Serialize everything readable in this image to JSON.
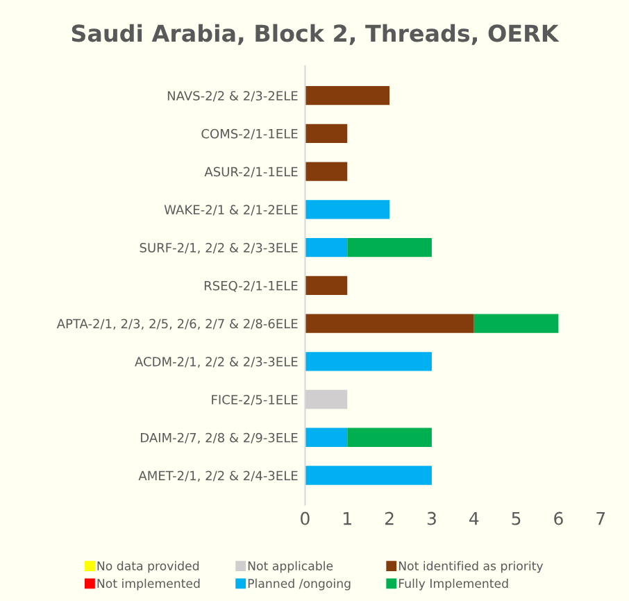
{
  "chart_data": {
    "type": "bar",
    "orientation": "horizontal",
    "stacked": true,
    "title": "Saudi Arabia, Block 2, Threads, OERK",
    "categories": [
      "NAVS-2/2 & 2/3-2ELE",
      "COMS-2/1-1ELE",
      "ASUR-2/1-1ELE",
      "WAKE-2/1 & 2/1-2ELE",
      "SURF-2/1, 2/2 & 2/3-3ELE",
      "RSEQ-2/1-1ELE",
      "APTA-2/1, 2/3, 2/5, 2/6, 2/7 & 2/8-6ELE",
      "ACDM-2/1, 2/2 & 2/3-3ELE",
      "FICE-2/5-1ELE",
      "DAIM-2/7, 2/8 & 2/9-3ELE",
      "AMET-2/1, 2/2 & 2/4-3ELE"
    ],
    "series": [
      {
        "name": "No data provided",
        "color": "#ffff00",
        "values": [
          0,
          0,
          0,
          0,
          0,
          0,
          0,
          0,
          0,
          0,
          0
        ]
      },
      {
        "name": "Not applicable",
        "color": "#d0cece",
        "values": [
          0,
          0,
          0,
          0,
          0,
          0,
          0,
          0,
          1,
          0,
          0
        ]
      },
      {
        "name": "Not identified as priority",
        "color": "#843c0c",
        "values": [
          2,
          1,
          1,
          0,
          0,
          1,
          4,
          0,
          0,
          0,
          0
        ]
      },
      {
        "name": "Not implemented",
        "color": "#ff0000",
        "values": [
          0,
          0,
          0,
          0,
          0,
          0,
          0,
          0,
          0,
          0,
          0
        ]
      },
      {
        "name": "Planned /ongoing",
        "color": "#00b0f0",
        "values": [
          0,
          0,
          0,
          2,
          1,
          0,
          0,
          3,
          0,
          1,
          3
        ]
      },
      {
        "name": "Fully Implemented",
        "color": "#00b050",
        "values": [
          0,
          0,
          0,
          0,
          2,
          0,
          2,
          0,
          0,
          2,
          0
        ]
      }
    ],
    "xlim": [
      0,
      7
    ],
    "xticks": [
      0,
      1,
      2,
      3,
      4,
      5,
      6,
      7
    ],
    "grid": false,
    "legend": "bottom"
  }
}
